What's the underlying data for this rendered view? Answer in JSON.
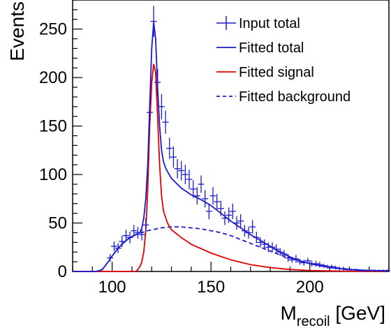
{
  "chart_data": {
    "type": "line",
    "xlabel": "M",
    "xlabel_sub": "recoil",
    "xlabel_unit": " [GeV]",
    "ylabel": "Events",
    "xlim": [
      80,
      240
    ],
    "ylim": [
      0,
      280
    ],
    "x_ticks": [
      100,
      150,
      200
    ],
    "y_ticks": [
      0,
      50,
      100,
      150,
      200,
      250
    ],
    "grid": false,
    "legend_position": "top-right",
    "series": [
      {
        "name": "Input total",
        "style": "points",
        "color": "#1a1acc",
        "x": [
          99,
          101,
          103,
          105,
          107,
          109,
          111,
          113,
          115,
          117,
          119,
          121,
          123,
          125,
          127,
          129,
          131,
          133,
          135,
          137,
          139,
          141,
          143,
          145,
          147,
          149,
          151,
          153,
          155,
          157,
          159,
          161,
          163,
          165,
          167,
          169,
          171,
          173,
          175,
          177,
          179,
          181,
          183,
          185,
          187,
          189,
          191,
          193,
          195,
          197,
          199,
          201,
          203,
          205,
          207,
          209,
          211,
          213,
          215,
          217,
          219,
          221,
          223,
          225,
          227,
          229,
          231,
          233,
          235,
          237,
          239
        ],
        "y": [
          14,
          26,
          24,
          31,
          37,
          35,
          42,
          40,
          38,
          48,
          164,
          258,
          195,
          170,
          154,
          127,
          118,
          106,
          104,
          100,
          95,
          85,
          78,
          90,
          75,
          62,
          78,
          72,
          65,
          55,
          58,
          62,
          50,
          52,
          42,
          40,
          46,
          35,
          30,
          28,
          25,
          25,
          23,
          20,
          18,
          14,
          12,
          13,
          10,
          9,
          11,
          8,
          8,
          7,
          6,
          5,
          5,
          4,
          3,
          3,
          2,
          2,
          2,
          1,
          1,
          1,
          1,
          1,
          1,
          1,
          1
        ],
        "err": [
          4,
          5,
          5,
          6,
          6,
          6,
          6,
          6,
          6,
          7,
          13,
          16,
          14,
          13,
          12,
          11,
          11,
          10,
          10,
          10,
          10,
          9,
          9,
          9,
          9,
          8,
          9,
          8,
          8,
          7,
          8,
          8,
          7,
          7,
          6,
          6,
          7,
          6,
          5,
          5,
          5,
          5,
          5,
          4,
          4,
          4,
          3,
          4,
          3,
          3,
          3,
          3,
          3,
          3,
          2,
          2,
          2,
          2,
          2,
          2,
          1,
          1,
          1,
          1,
          1,
          1,
          1,
          1,
          1,
          1,
          1
        ]
      },
      {
        "name": "Fitted total",
        "style": "solid",
        "color": "#1a1acc",
        "x": [
          80,
          92,
          95,
          98,
          100,
          103,
          106,
          109,
          112,
          114,
          115,
          116,
          117,
          118,
          119,
          120,
          121,
          122,
          123,
          124,
          125,
          126,
          127,
          128,
          130,
          132,
          135,
          140,
          145,
          150,
          155,
          160,
          165,
          170,
          175,
          180,
          185,
          190,
          195,
          200,
          210,
          220,
          230,
          240
        ],
        "y": [
          0,
          0,
          2,
          10,
          16,
          24,
          30,
          35,
          38,
          40,
          45,
          55,
          75,
          110,
          170,
          230,
          257,
          240,
          190,
          150,
          125,
          113,
          107,
          103,
          96,
          92,
          86,
          79,
          74,
          68,
          60,
          52,
          45,
          38,
          32,
          26,
          20,
          15,
          11,
          8,
          4,
          2,
          1,
          0.5
        ]
      },
      {
        "name": "Fitted signal",
        "style": "solid",
        "color": "#e00000",
        "x": [
          80,
          112,
          113,
          114,
          115,
          116,
          117,
          118,
          119,
          120,
          121,
          122,
          123,
          124,
          125,
          126,
          128,
          130,
          135,
          140,
          150,
          160,
          170,
          180,
          190,
          200,
          210,
          220,
          240
        ],
        "y": [
          0,
          0,
          2,
          5,
          10,
          20,
          42,
          85,
          150,
          195,
          214,
          205,
          160,
          110,
          78,
          62,
          50,
          43,
          35,
          28,
          19,
          12,
          7,
          4,
          2,
          1,
          0.5,
          0.3,
          0
        ]
      },
      {
        "name": "Fitted background",
        "style": "dashed",
        "color": "#1a1acc",
        "x": [
          80,
          92,
          95,
          98,
          100,
          103,
          106,
          109,
          112,
          115,
          118,
          120,
          125,
          130,
          135,
          140,
          145,
          150,
          155,
          160,
          165,
          170,
          175,
          180,
          185,
          190,
          195,
          200,
          210,
          220,
          230,
          240
        ],
        "y": [
          0,
          0,
          2,
          10,
          16,
          24,
          30,
          35,
          38,
          40,
          42,
          43,
          45,
          46,
          46,
          45,
          44,
          42,
          40,
          37,
          33,
          29,
          25,
          21,
          17,
          14,
          11,
          8,
          4,
          2,
          1,
          0.5
        ]
      }
    ]
  }
}
